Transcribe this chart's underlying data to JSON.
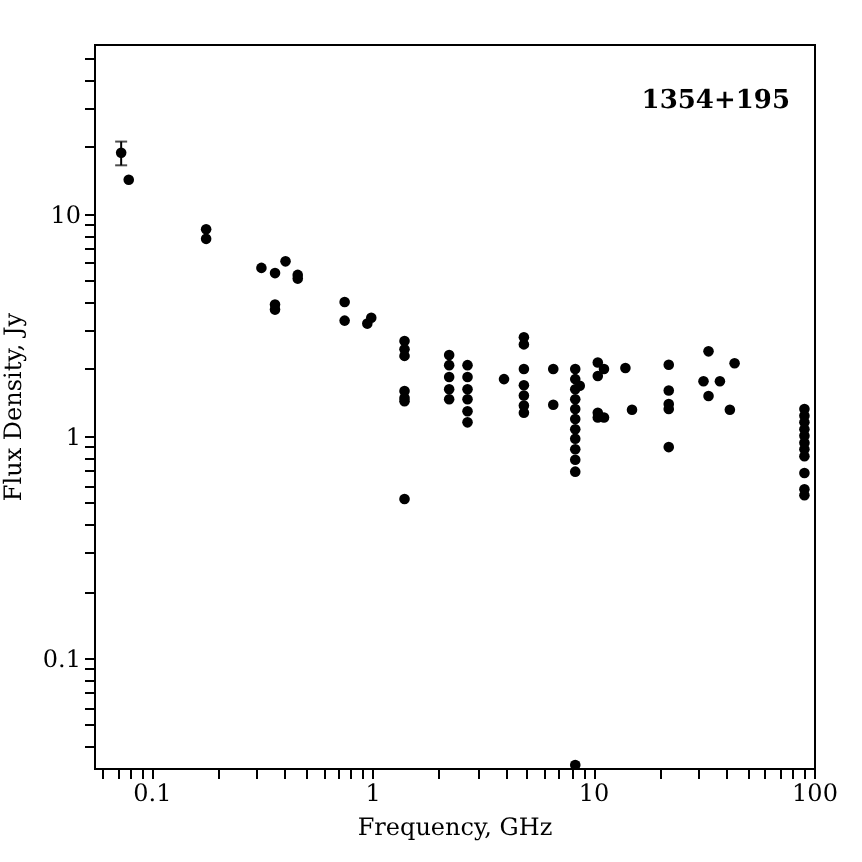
{
  "chart_data": {
    "type": "scatter",
    "xlabel": "Frequency, GHz",
    "ylabel": "Flux Density, Jy",
    "annotations": [
      "1354+195"
    ],
    "log": "xy",
    "grid": false,
    "marker": "circle",
    "xlim": [
      0.055,
      100
    ],
    "ylim": [
      0.032,
      58
    ],
    "xticks": [
      {
        "value": 0.06,
        "label": null
      },
      {
        "value": 0.07,
        "label": null
      },
      {
        "value": 0.08,
        "label": null
      },
      {
        "value": 0.09,
        "label": null
      },
      0.1,
      {
        "value": 0.2,
        "label": null
      },
      {
        "value": 0.3,
        "label": null
      },
      {
        "value": 0.4,
        "label": null
      },
      {
        "value": 0.5,
        "label": null
      },
      {
        "value": 0.6,
        "label": null
      },
      {
        "value": 0.7,
        "label": null
      },
      {
        "value": 0.8,
        "label": null
      },
      {
        "value": 0.9,
        "label": null
      },
      1,
      {
        "value": 2,
        "label": null
      },
      {
        "value": 3,
        "label": null
      },
      {
        "value": 4,
        "label": null
      },
      {
        "value": 5,
        "label": null
      },
      {
        "value": 6,
        "label": null
      },
      {
        "value": 7,
        "label": null
      },
      {
        "value": 8,
        "label": null
      },
      {
        "value": 9,
        "label": null
      },
      10,
      {
        "value": 20,
        "label": null
      },
      {
        "value": 30,
        "label": null
      },
      {
        "value": 40,
        "label": null
      },
      {
        "value": 50,
        "label": null
      },
      {
        "value": 60,
        "label": null
      },
      {
        "value": 70,
        "label": null
      },
      {
        "value": 80,
        "label": null
      },
      {
        "value": 90,
        "label": null
      },
      100
    ],
    "yticks": [
      {
        "value": 0.04,
        "label": null
      },
      {
        "value": 0.05,
        "label": null
      },
      {
        "value": 0.06,
        "label": null
      },
      {
        "value": 0.07,
        "label": null
      },
      {
        "value": 0.08,
        "label": null
      },
      {
        "value": 0.09,
        "label": null
      },
      0.1,
      {
        "value": 0.2,
        "label": null
      },
      {
        "value": 0.3,
        "label": null
      },
      {
        "value": 0.4,
        "label": null
      },
      {
        "value": 0.5,
        "label": null
      },
      {
        "value": 0.6,
        "label": null
      },
      {
        "value": 0.7,
        "label": null
      },
      {
        "value": 0.8,
        "label": null
      },
      {
        "value": 0.9,
        "label": null
      },
      1,
      {
        "value": 2,
        "label": null
      },
      {
        "value": 3,
        "label": null
      },
      {
        "value": 4,
        "label": null
      },
      {
        "value": 5,
        "label": null
      },
      {
        "value": 6,
        "label": null
      },
      {
        "value": 7,
        "label": null
      },
      {
        "value": 8,
        "label": null
      },
      {
        "value": 9,
        "label": null
      },
      10,
      {
        "value": 20,
        "label": null
      },
      {
        "value": 30,
        "label": null
      },
      {
        "value": 40,
        "label": null
      },
      {
        "value": 50,
        "label": null
      }
    ],
    "series": [
      {
        "color": "#000000",
        "x": [
          0.073,
          0.079,
          0.177,
          0.177,
          0.315,
          0.363,
          0.363,
          0.363,
          0.405,
          0.46,
          0.46,
          0.75,
          0.75,
          0.95,
          0.99,
          1.4,
          1.4,
          1.4,
          1.4,
          1.4,
          1.4,
          1.4,
          2.23,
          2.23,
          2.23,
          2.23,
          2.23,
          2.7,
          2.7,
          2.7,
          2.7,
          2.7,
          2.7,
          3.95,
          4.86,
          4.86,
          4.86,
          4.86,
          4.86,
          4.86,
          4.86,
          6.6,
          6.6,
          8.3,
          8.3,
          8.3,
          8.3,
          8.3,
          8.3,
          8.3,
          8.3,
          8.3,
          8.3,
          8.3,
          8.3,
          8.7,
          10.5,
          10.5,
          10.5,
          10.5,
          11.2,
          11.2,
          14,
          15,
          22,
          22,
          22,
          22,
          22,
          31.6,
          33.3,
          33.3,
          37.5,
          41.6,
          43.7,
          90.5,
          90.5,
          90.5,
          90.5,
          90.5,
          90.5,
          90.5,
          90.5,
          90.5,
          90.5,
          90.5
        ],
        "values": [
          18.8,
          14.2,
          8.5,
          7.7,
          5.7,
          5.4,
          3.9,
          3.7,
          6.1,
          5.3,
          5.1,
          4.0,
          3.3,
          3.2,
          3.4,
          2.67,
          2.45,
          2.29,
          1.59,
          1.48,
          1.43,
          0.52,
          2.31,
          2.08,
          1.84,
          1.62,
          1.46,
          2.08,
          1.84,
          1.62,
          1.46,
          1.29,
          1.15,
          1.8,
          2.78,
          2.58,
          2.0,
          1.69,
          1.52,
          1.37,
          1.27,
          2.0,
          1.38,
          2.0,
          1.8,
          1.62,
          1.46,
          1.32,
          1.19,
          1.07,
          0.97,
          0.87,
          0.78,
          0.69,
          0.033,
          1.68,
          2.14,
          1.86,
          1.27,
          1.21,
          2.0,
          1.21,
          2.02,
          1.31,
          2.09,
          1.6,
          1.39,
          1.32,
          0.89,
          1.76,
          2.4,
          1.51,
          1.76,
          1.31,
          2.12,
          1.32,
          1.23,
          1.15,
          1.07,
          1.0,
          0.93,
          0.87,
          0.81,
          0.68,
          0.575,
          0.54
        ],
        "errors": [
          2.3,
          null,
          null,
          null,
          null,
          null,
          null,
          null,
          null,
          null,
          null,
          null,
          null,
          null,
          null,
          null,
          null,
          null,
          null,
          null,
          null,
          null,
          null,
          null,
          null,
          null,
          null,
          null,
          null,
          null,
          null,
          null,
          null,
          null,
          null,
          null,
          null,
          null,
          null,
          null,
          null,
          null,
          null,
          null,
          null,
          null,
          null,
          null,
          null,
          null,
          null,
          null,
          null,
          null,
          null,
          null,
          null,
          null,
          null,
          null,
          null,
          null,
          null,
          null,
          null,
          null,
          null,
          null,
          null,
          null,
          null,
          null,
          null,
          null,
          null,
          null,
          null,
          null,
          null,
          null,
          null,
          null,
          null,
          null,
          null,
          null
        ]
      }
    ]
  }
}
